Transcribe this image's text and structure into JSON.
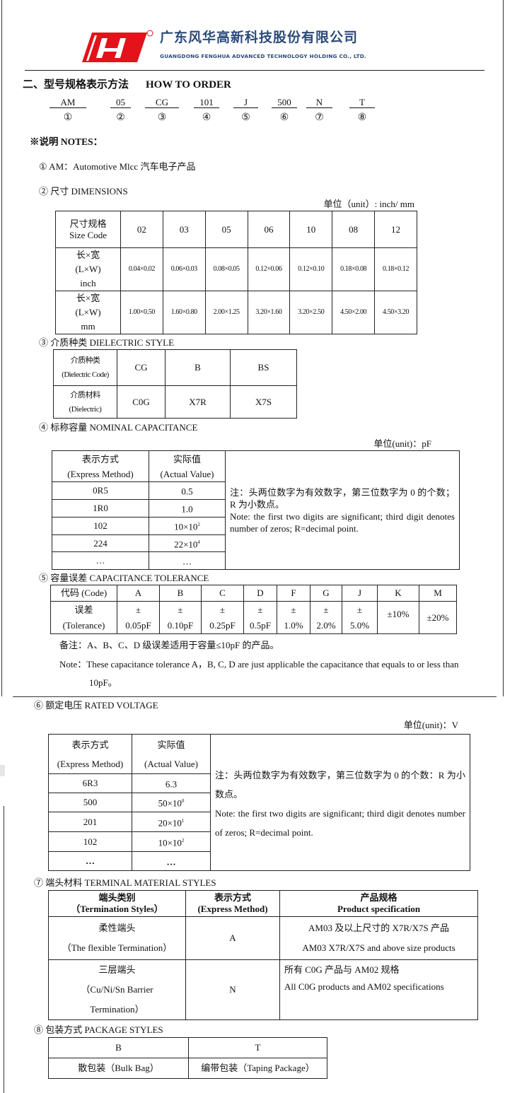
{
  "header": {
    "company_cn": "广东风华高新科技股份有限公司",
    "company_en": "GUANGDONG FENGHUA ADVANCED TECHNOLOGY HOLDING CO., LTD.",
    "logo_color": "#e3121b",
    "text_color": "#2b4a7a"
  },
  "title": {
    "cn": "二、型号规格表示方法",
    "en": "HOW TO ORDER"
  },
  "order_codes": [
    {
      "code": "AM",
      "num": "①"
    },
    {
      "code": "05",
      "num": "②"
    },
    {
      "code": "CG",
      "num": "③"
    },
    {
      "code": "101",
      "num": "④"
    },
    {
      "code": "J",
      "num": "⑤"
    },
    {
      "code": "500",
      "num": "⑥"
    },
    {
      "code": "N",
      "num": "⑦"
    },
    {
      "code": "T",
      "num": "⑧"
    }
  ],
  "notes_heading": "※说明  NOTES：",
  "sec1": "①  AM：Automotive    Mlcc  汽车电子产品",
  "sec2": {
    "title": "②  尺寸    DIMENSIONS",
    "unit": "单位（unit）: inch/ mm",
    "header_label": [
      "尺寸规格",
      "Size Code"
    ],
    "codes": [
      "02",
      "03",
      "05",
      "06",
      "10",
      "08",
      "12"
    ],
    "inch_label": [
      "长×宽",
      "(L×W)",
      "inch"
    ],
    "inch": [
      "0.04×0.02",
      "0.06×0.03",
      "0.08×0.05",
      "0.12×0.06",
      "0.12×0.10",
      "0.18×0.08",
      "0.18×0.12"
    ],
    "mm_label": [
      "长×宽",
      "(L×W)",
      "mm"
    ],
    "mm": [
      "1.00×0.50",
      "1.60×0.80",
      "2.00×1.25",
      "3.20×1.60",
      "3.20×2.50",
      "4.50×2.00",
      "4.50×3.20"
    ]
  },
  "sec3": {
    "title": "③  介质种类 DIELECTRIC STYLE",
    "code_label": [
      "介质种类",
      "(Dielectric Code)"
    ],
    "codes": [
      "CG",
      "B",
      "BS"
    ],
    "mat_label": [
      "介质材料",
      "(Dielectric)"
    ],
    "materials": [
      "C0G",
      "X7R",
      "X7S"
    ]
  },
  "sec4": {
    "title": "④  标称容量  NOMINAL CAPACITANCE",
    "unit": "单位(unit)：pF",
    "col1": [
      "表示方式",
      "(Express Method)"
    ],
    "col2": [
      "实际值",
      "(Actual Value)"
    ],
    "rows": [
      {
        "code": "0R5",
        "base": "0.5",
        "exp": ""
      },
      {
        "code": "1R0",
        "base": "1.0",
        "exp": ""
      },
      {
        "code": "102",
        "base": "10×10",
        "exp": "2"
      },
      {
        "code": "224",
        "base": "22×10",
        "exp": "4"
      },
      {
        "code": "…",
        "base": "…",
        "exp": ""
      }
    ],
    "note_cn": "注：头两位数字为有效数字，第三位数字为 0 的个数；R 为小数点。",
    "note_en": "Note: the first two digits are significant; third digit denotes number of zeros; R=decimal point."
  },
  "sec5": {
    "title": "⑤  容量误差 CAPACITANCE TOLERANCE",
    "code_label": "代码 (Code)",
    "tol_label": [
      "误差",
      "(Tolerance)"
    ],
    "codes": [
      "A",
      "B",
      "C",
      "D",
      "F",
      "G",
      "J",
      "K",
      "M"
    ],
    "tolerances": [
      [
        "±",
        "0.05pF"
      ],
      [
        "±",
        "0.10pF"
      ],
      [
        "±",
        "0.25pF"
      ],
      [
        "±",
        "0.5pF"
      ],
      [
        "±",
        "1.0%"
      ],
      [
        "±",
        "2.0%"
      ],
      [
        "±",
        "5.0%"
      ],
      [
        "±10%",
        ""
      ],
      [
        "±20%",
        ""
      ]
    ],
    "remark_cn": "备注：A、B、C、D 级误差适用于容量≤10pF 的产品。",
    "remark_en_1": "Note：These capacitance tolerance A，B, C, D are just applicable the capacitance that equals to or less than",
    "remark_en_2": "10pF。"
  },
  "sec6": {
    "title": "⑥  额定电压 RATED VOLTAGE",
    "unit": "单位(unit)：V",
    "col1": [
      "表示方式",
      "(Express Method)"
    ],
    "col2": [
      "实际值",
      "(Actual Value)"
    ],
    "rows": [
      {
        "code": "6R3",
        "base": "6.3",
        "exp": ""
      },
      {
        "code": "500",
        "base": "50×10",
        "exp": "0"
      },
      {
        "code": "201",
        "base": "20×10",
        "exp": "1"
      },
      {
        "code": "102",
        "base": "10×10",
        "exp": "2"
      },
      {
        "code": "…",
        "base": "…",
        "exp": ""
      }
    ],
    "note_cn": "注：头两位数字为有效数字，第三位数字为 0 的个数：R 为小数点。",
    "note_en": "Note: the first two digits are significant; third digit denotes number of zeros; R=decimal point."
  },
  "sec7": {
    "title": "⑦  端头材料 TERMINAL MATERIAL STYLES",
    "headers": [
      [
        "端头类别",
        "（Termination Styles）"
      ],
      [
        "表示方式",
        "(Express Method)"
      ],
      [
        "产品规格",
        "Product specification"
      ]
    ],
    "rows": [
      {
        "style": [
          "柔性端头",
          "（The flexible Termination）"
        ],
        "code": "A",
        "spec": [
          "AM03 及以上尺寸的 X7R/X7S 产品",
          "AM03 X7R/X7S and above size products"
        ]
      },
      {
        "style": [
          "三层端头",
          "（Cu/Ni/Sn Barrier",
          "Termination）"
        ],
        "code": "N",
        "spec": [
          "所有 C0G 产品与 AM02 规格",
          "All C0G products and AM02 specifications"
        ]
      }
    ]
  },
  "sec8": {
    "title": "⑧  包装方式 PACKAGE STYLES",
    "codes": [
      "B",
      "T"
    ],
    "names": [
      "散包装（Bulk Bag）",
      "编带包装（Taping Package）"
    ]
  }
}
